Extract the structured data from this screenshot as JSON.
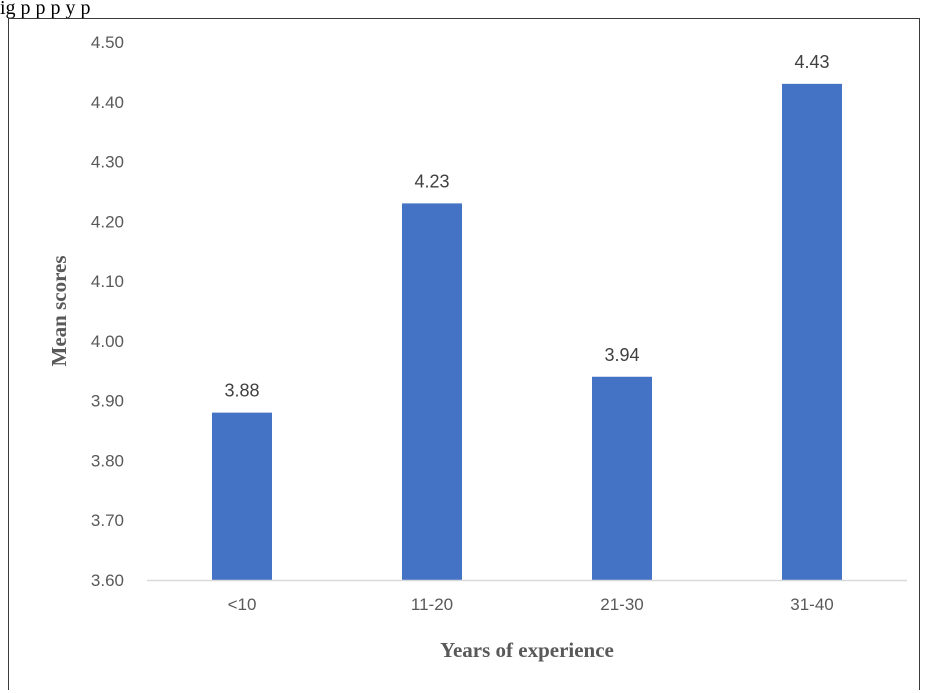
{
  "caption_fragment": "ig    p                                                          p  p                            y  p",
  "chart_data": {
    "type": "bar",
    "categories": [
      "<10",
      "11-20",
      "21-30",
      "31-40"
    ],
    "values": [
      3.88,
      4.23,
      3.94,
      4.43
    ],
    "data_labels": [
      "3.88",
      "4.23",
      "3.94",
      "4.43"
    ],
    "y_ticks": [
      "3.60",
      "3.70",
      "3.80",
      "3.90",
      "4.00",
      "4.10",
      "4.20",
      "4.30",
      "4.40",
      "4.50"
    ],
    "xlabel": "Years of experience",
    "ylabel": "Mean scores",
    "ylim": [
      3.6,
      4.5
    ],
    "grid": false,
    "legend": "none",
    "bar_color": "#4472c4",
    "axis_color": "#d9d9d9"
  }
}
